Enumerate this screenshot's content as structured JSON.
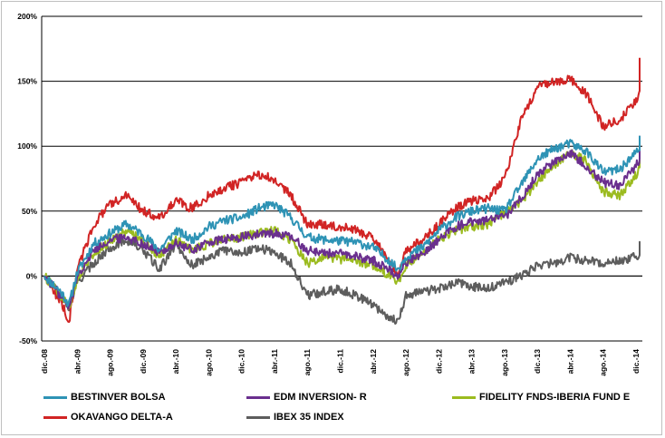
{
  "chart_data": {
    "type": "line",
    "title": "",
    "xlabel": "",
    "ylabel": "",
    "ylim": [
      -50,
      200
    ],
    "y_ticks": [
      -50,
      0,
      50,
      100,
      150,
      200
    ],
    "y_tick_labels": [
      "-50%",
      "0%",
      "50%",
      "100%",
      "150%",
      "200%"
    ],
    "grid": "horizontal",
    "legend_position": "bottom",
    "x_range": [
      "2008-12",
      "2014-12"
    ],
    "x_tick_labels": [
      "dic.-08",
      "abr.-09",
      "ago.-09",
      "dic.-09",
      "abr.-10",
      "ago.-10",
      "dic.-10",
      "abr.-11",
      "ago.-11",
      "dic.-11",
      "abr.-12",
      "ago.-12",
      "dic.-12",
      "abr.-13",
      "ago.-13",
      "dic.-13",
      "abr.-14",
      "ago.-14",
      "dic.-14"
    ],
    "x": [
      "2008-12",
      "2009-02",
      "2009-03",
      "2009-04",
      "2009-06",
      "2009-08",
      "2009-10",
      "2009-12",
      "2010-02",
      "2010-04",
      "2010-06",
      "2010-08",
      "2010-10",
      "2010-12",
      "2011-02",
      "2011-04",
      "2011-06",
      "2011-08",
      "2011-10",
      "2011-12",
      "2012-02",
      "2012-04",
      "2012-06",
      "2012-07",
      "2012-08",
      "2012-10",
      "2012-12",
      "2013-02",
      "2013-04",
      "2013-06",
      "2013-08",
      "2013-10",
      "2013-12",
      "2014-02",
      "2014-04",
      "2014-06",
      "2014-08",
      "2014-10",
      "2014-12",
      "2015-02"
    ],
    "series": [
      {
        "name": "BESTINVER BOLSA",
        "color": "#2e93b5",
        "values": [
          0,
          -12,
          -22,
          3,
          25,
          33,
          40,
          32,
          20,
          35,
          28,
          38,
          43,
          45,
          52,
          55,
          45,
          30,
          28,
          27,
          26,
          22,
          12,
          5,
          15,
          22,
          35,
          45,
          50,
          52,
          50,
          70,
          90,
          98,
          102,
          96,
          80,
          82,
          95,
          108
        ]
      },
      {
        "name": "EDM INVERSION- R",
        "color": "#6a2f8e",
        "values": [
          0,
          -15,
          -25,
          0,
          20,
          28,
          30,
          25,
          18,
          25,
          20,
          26,
          28,
          30,
          32,
          33,
          30,
          20,
          18,
          17,
          15,
          12,
          5,
          0,
          10,
          18,
          28,
          38,
          42,
          43,
          45,
          60,
          78,
          88,
          95,
          85,
          72,
          70,
          85,
          108
        ]
      },
      {
        "name": "FIDELITY FNDS-IBERIA FUND E",
        "color": "#9bbb1f",
        "values": [
          0,
          -15,
          -25,
          -2,
          18,
          27,
          35,
          28,
          15,
          28,
          20,
          25,
          28,
          30,
          33,
          35,
          28,
          10,
          14,
          13,
          12,
          8,
          0,
          -5,
          8,
          18,
          28,
          35,
          38,
          40,
          48,
          58,
          72,
          85,
          95,
          88,
          65,
          62,
          78,
          102
        ]
      },
      {
        "name": "OKAVANGO DELTA-A",
        "color": "#d12424",
        "values": [
          0,
          -20,
          -35,
          5,
          40,
          55,
          62,
          50,
          45,
          58,
          52,
          62,
          68,
          72,
          78,
          75,
          62,
          40,
          40,
          38,
          35,
          30,
          10,
          0,
          20,
          28,
          40,
          52,
          58,
          60,
          75,
          120,
          145,
          150,
          152,
          140,
          115,
          120,
          135,
          168
        ]
      },
      {
        "name": "IBEX 35 INDEX",
        "color": "#5d5d5d",
        "values": [
          0,
          -15,
          -25,
          -5,
          10,
          22,
          28,
          20,
          5,
          25,
          8,
          15,
          20,
          18,
          22,
          18,
          10,
          -15,
          -12,
          -10,
          -15,
          -22,
          -32,
          -35,
          -15,
          -12,
          -10,
          -5,
          -8,
          -10,
          -5,
          0,
          8,
          10,
          14,
          12,
          10,
          12,
          15,
          25
        ]
      }
    ]
  }
}
